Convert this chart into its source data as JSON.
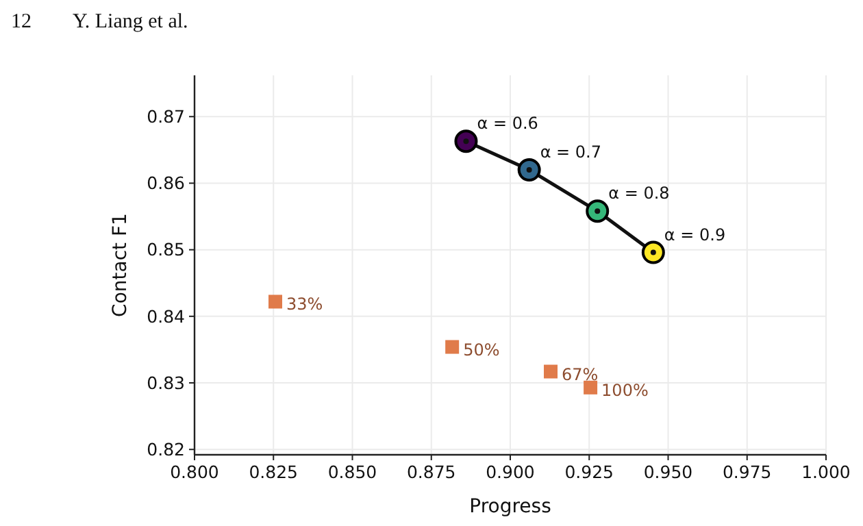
{
  "chart_data": {
    "type": "scatter",
    "xlabel": "Progress",
    "ylabel": "Contact F1",
    "xlim": [
      0.8,
      1.0
    ],
    "xticks": [
      {
        "value": 0.8,
        "label": "0.800"
      },
      {
        "value": 0.825,
        "label": "0.825"
      },
      {
        "value": 0.85,
        "label": "0.850"
      },
      {
        "value": 0.875,
        "label": "0.875"
      },
      {
        "value": 0.9,
        "label": "0.900"
      },
      {
        "value": 0.925,
        "label": "0.925"
      },
      {
        "value": 0.95,
        "label": "0.950"
      },
      {
        "value": 0.975,
        "label": "0.975"
      },
      {
        "value": 1.0,
        "label": "1.000"
      }
    ],
    "ylim": [
      0.8192,
      0.8762
    ],
    "yticks": [
      0.82,
      0.83,
      0.84,
      0.85,
      0.86,
      0.87
    ],
    "grid": true,
    "series": [
      {
        "type": "line",
        "color": "#111111",
        "marker": "circle",
        "line_style": "solid",
        "x": [
          0.886,
          0.906,
          0.9276,
          0.9453
        ],
        "values": [
          0.8663,
          0.862,
          0.8558,
          0.8496
        ],
        "colors": [
          "#440154",
          "#31688e",
          "#35b779",
          "#fde725"
        ]
      },
      {
        "type": "scatter",
        "color": "#e07b4a",
        "marker": "square",
        "x": [
          0.8256,
          0.8816,
          0.9128,
          0.9254
        ],
        "values": [
          0.8422,
          0.8354,
          0.8317,
          0.8293
        ]
      }
    ],
    "annotations": [
      "12  Y. Liang et al.",
      {
        "text": "α = 0.6",
        "x": 0.886,
        "y": 0.8663
      },
      {
        "text": "α = 0.7",
        "x": 0.906,
        "y": 0.862
      },
      {
        "text": "α = 0.8",
        "x": 0.9276,
        "y": 0.8558
      },
      {
        "text": "α = 0.9",
        "x": 0.9453,
        "y": 0.8496
      },
      {
        "text": "33%",
        "x": 0.8256,
        "y": 0.8422
      },
      {
        "text": "50%",
        "x": 0.8816,
        "y": 0.8354
      },
      {
        "text": "67%",
        "x": 0.9128,
        "y": 0.8317
      },
      {
        "text": "100%",
        "x": 0.9254,
        "y": 0.8293
      }
    ]
  }
}
